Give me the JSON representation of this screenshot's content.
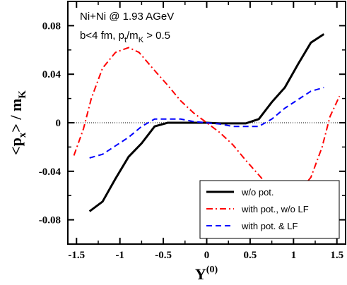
{
  "chart_data": {
    "type": "line",
    "annotations": {
      "line1": "Ni+Ni @ 1.93 AGeV",
      "line2_base": "b<4 fm, p",
      "line2_sub1": "t",
      "line2_mid": "/m",
      "line2_sub2": "K",
      "line2_tail": " > 0.5"
    },
    "xlabel": {
      "base": "Y",
      "sup": "(0)"
    },
    "ylabel": {
      "p1": "<p",
      "sub1": "x",
      "p2": "> / m",
      "sub2": "K"
    },
    "xlim": [
      -1.6,
      1.6
    ],
    "ylim": [
      -0.1,
      0.1
    ],
    "xticks": [
      -1.5,
      -1,
      -0.5,
      0,
      0.5,
      1,
      1.5
    ],
    "xtick_labels": [
      "-1.5",
      "-1",
      "-0.5",
      "0",
      "0.5",
      "1",
      "1.5"
    ],
    "yticks": [
      -0.08,
      -0.04,
      0,
      0.04,
      0.08
    ],
    "ytick_labels": [
      "-0.08",
      "-0.04",
      "0",
      "0.04",
      "0.08"
    ],
    "zero_line": true,
    "legend_position": "bottom-right",
    "series": [
      {
        "name": "w/o pot.",
        "color": "#000000",
        "dash": "solid",
        "x": [
          -1.35,
          -1.2,
          -1.05,
          -0.9,
          -0.75,
          -0.6,
          -0.45,
          -0.3,
          -0.15,
          0,
          0.15,
          0.3,
          0.45,
          0.6,
          0.75,
          0.9,
          1.05,
          1.2,
          1.35
        ],
        "y": [
          -0.073,
          -0.065,
          -0.046,
          -0.028,
          -0.017,
          -0.003,
          0.0,
          0.0,
          0.0,
          0.0,
          -0.0005,
          -0.0005,
          -0.0005,
          0.003,
          0.017,
          0.029,
          0.048,
          0.066,
          0.073
        ]
      },
      {
        "name": "with pot., w/o LF",
        "color": "#ff0000",
        "dash": "dashdot",
        "x": [
          -1.53,
          -1.42,
          -1.33,
          -1.2,
          -1.05,
          -0.9,
          -0.78,
          -0.6,
          -0.45,
          -0.3,
          -0.15,
          0,
          0.15,
          0.3,
          0.45,
          0.6,
          0.78,
          0.9,
          1.05,
          1.2,
          1.33,
          1.42,
          1.53
        ],
        "y": [
          -0.027,
          -0.005,
          0.02,
          0.045,
          0.058,
          0.062,
          0.058,
          0.043,
          0.031,
          0.018,
          0.008,
          0.0,
          -0.008,
          -0.018,
          -0.031,
          -0.043,
          -0.058,
          -0.062,
          -0.058,
          -0.045,
          -0.02,
          0.005,
          0.022
        ]
      },
      {
        "name": "with pot. & LF",
        "color": "#0000ff",
        "dash": "dashed",
        "x": [
          -1.35,
          -1.2,
          -1.05,
          -0.9,
          -0.75,
          -0.6,
          -0.45,
          -0.3,
          -0.15,
          0,
          0.15,
          0.3,
          0.45,
          0.6,
          0.75,
          0.9,
          1.05,
          1.2,
          1.35
        ],
        "y": [
          -0.029,
          -0.026,
          -0.019,
          -0.012,
          -0.003,
          0.003,
          0.003,
          0.003,
          0.001,
          0.0,
          -0.001,
          -0.003,
          -0.003,
          -0.003,
          0.003,
          0.012,
          0.019,
          0.026,
          0.029
        ]
      }
    ]
  }
}
